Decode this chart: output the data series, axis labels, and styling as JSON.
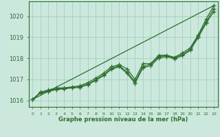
{
  "bg_color": "#cce8dd",
  "grid_color": "#99ccbb",
  "line_color": "#2d6e2d",
  "marker_color": "#2d6e2d",
  "xlabel": "Graphe pression niveau de la mer (hPa)",
  "xlim": [
    -0.5,
    23.5
  ],
  "ylim": [
    1015.7,
    1020.7
  ],
  "yticks": [
    1016,
    1017,
    1018,
    1019,
    1020
  ],
  "xticks": [
    0,
    1,
    2,
    3,
    4,
    5,
    6,
    7,
    8,
    9,
    10,
    11,
    12,
    13,
    14,
    15,
    16,
    17,
    18,
    19,
    20,
    21,
    22,
    23
  ],
  "series": [
    [
      1016.05,
      1016.4,
      1016.5,
      1016.6,
      1016.6,
      1016.65,
      1016.7,
      1016.85,
      1017.05,
      1017.3,
      1017.6,
      1017.7,
      1017.5,
      1017.0,
      1017.75,
      1017.75,
      1018.15,
      1018.15,
      1018.05,
      1018.25,
      1018.5,
      1019.1,
      1019.85,
      1020.5
    ],
    [
      1016.05,
      1016.38,
      1016.45,
      1016.55,
      1016.58,
      1016.62,
      1016.65,
      1016.78,
      1016.98,
      1017.22,
      1017.52,
      1017.65,
      1017.35,
      1016.88,
      1017.62,
      1017.72,
      1018.08,
      1018.12,
      1018.02,
      1018.18,
      1018.42,
      1019.05,
      1019.72,
      1020.35
    ],
    [
      1016.05,
      1016.35,
      1016.42,
      1016.52,
      1016.55,
      1016.6,
      1016.62,
      1016.75,
      1016.95,
      1017.18,
      1017.48,
      1017.6,
      1017.28,
      1016.82,
      1017.55,
      1017.65,
      1018.02,
      1018.08,
      1017.98,
      1018.12,
      1018.38,
      1018.98,
      1019.65,
      1020.22
    ]
  ],
  "straight_line_x": [
    0,
    23
  ],
  "straight_line_y": [
    1016.05,
    1020.5
  ],
  "marker_size": 3,
  "linewidth": 0.9
}
